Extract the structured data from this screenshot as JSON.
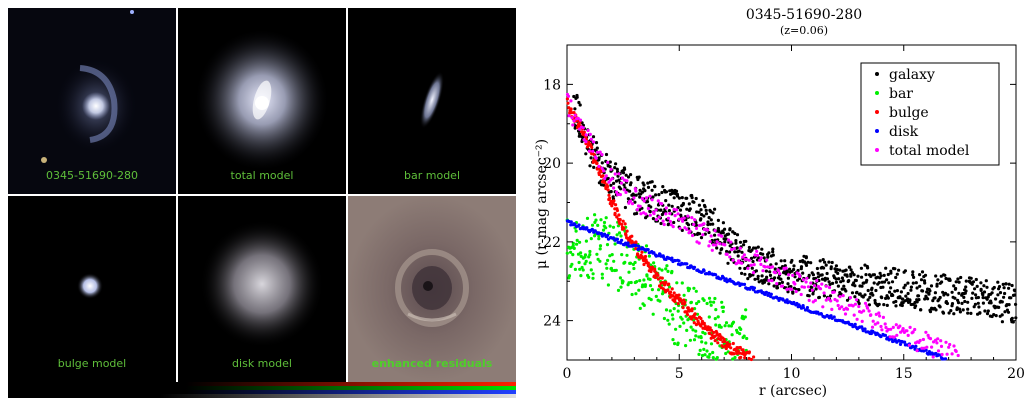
{
  "panels": [
    {
      "label": "0345-51690-280",
      "kind": "galaxy"
    },
    {
      "label": "total model",
      "kind": "total"
    },
    {
      "label": "bar model",
      "kind": "bar"
    },
    {
      "label": "bulge model",
      "kind": "bulge"
    },
    {
      "label": "disk model",
      "kind": "disk"
    },
    {
      "label": "enhanced residuals",
      "kind": "residual"
    }
  ],
  "chart_data": {
    "type": "scatter",
    "title": "0345-51690-280",
    "subtitle": "(z=0.06)",
    "xlabel": "r (arcsec)",
    "ylabel": "μ (r-mag arcsec⁻²)",
    "xlim": [
      0,
      20
    ],
    "ylim": [
      25,
      17
    ],
    "xticks": [
      0,
      5,
      10,
      15,
      20
    ],
    "yticks": [
      18,
      20,
      22,
      24
    ],
    "legend_position": "top-right",
    "series": [
      {
        "name": "galaxy",
        "color": "#000000",
        "x": [
          0.3,
          1,
          2,
          3,
          4,
          5,
          6,
          6.5,
          7,
          8,
          10,
          12,
          15,
          18,
          20
        ],
        "y": [
          18.5,
          19.7,
          20.4,
          20.8,
          21.0,
          21.2,
          21.4,
          21.6,
          22.0,
          22.5,
          22.8,
          23.0,
          23.2,
          23.4,
          23.6
        ]
      },
      {
        "name": "bar",
        "color": "#00ee00",
        "x": [
          0,
          1,
          2,
          3,
          4,
          5,
          6,
          7,
          8
        ],
        "y": [
          21.5,
          21.5,
          21.6,
          22.0,
          22.6,
          23.2,
          23.5,
          23.8,
          24.0
        ]
      },
      {
        "name": "bulge",
        "color": "#ff0000",
        "x": [
          0,
          0.5,
          1,
          1.5,
          2,
          2.5,
          3,
          4,
          5,
          6,
          7,
          8.3
        ],
        "y": [
          18.5,
          19.0,
          19.6,
          20.3,
          21.0,
          21.6,
          22.1,
          22.9,
          23.5,
          24.1,
          24.6,
          25.0
        ]
      },
      {
        "name": "disk",
        "color": "#0000ff",
        "x": [
          0,
          17
        ],
        "y": [
          21.5,
          25.0
        ]
      },
      {
        "name": "total model",
        "color": "#ff00ff",
        "x": [
          0,
          1,
          2,
          3,
          4,
          5,
          6,
          8,
          10,
          12,
          15,
          17.5
        ],
        "y": [
          18.5,
          19.5,
          20.4,
          20.9,
          21.2,
          21.5,
          21.8,
          22.4,
          23.0,
          23.5,
          24.3,
          25.0
        ]
      }
    ]
  }
}
